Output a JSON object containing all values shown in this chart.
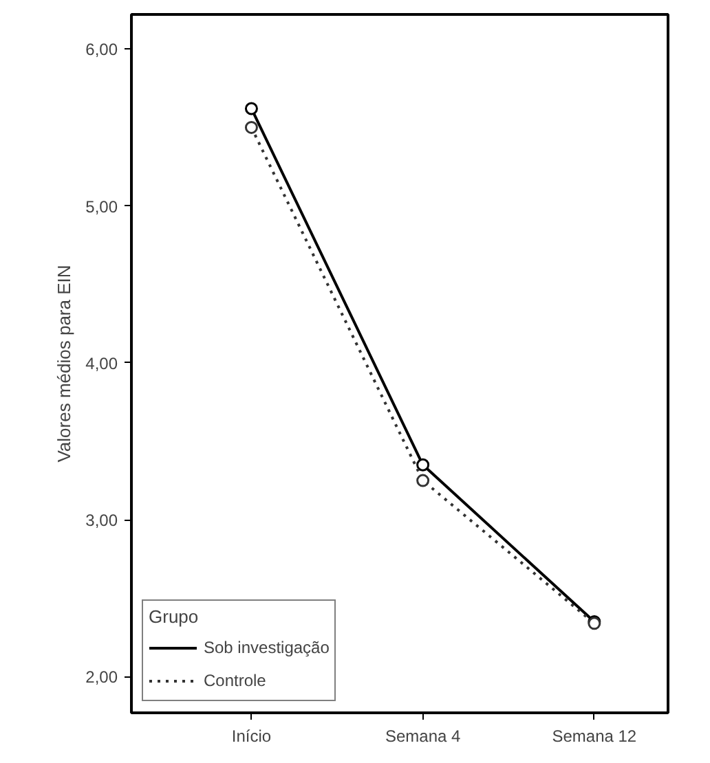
{
  "chart_data": {
    "type": "line",
    "ylabel": "Valores médios para EIN",
    "categories": [
      "Início",
      "Semana 4",
      "Semana 12"
    ],
    "series": [
      {
        "name": "Sob investigação",
        "color": "#000000",
        "values": [
          5.62,
          3.35,
          2.35
        ],
        "line_style": "solid"
      },
      {
        "name": "Controle",
        "color": "#333333",
        "values": [
          5.5,
          3.25,
          2.34
        ],
        "line_style": "dotted"
      }
    ],
    "ylim": [
      1.77,
      6.22
    ],
    "yticks": [
      {
        "value": 2,
        "label": "2,00"
      },
      {
        "value": 3,
        "label": "3,00"
      },
      {
        "value": 4,
        "label": "4,00"
      },
      {
        "value": 5,
        "label": "5,00"
      },
      {
        "value": 6,
        "label": "6,00"
      }
    ],
    "legend_title": "Grupo",
    "legend": "bottom left",
    "marker": "circle",
    "grid": false
  }
}
